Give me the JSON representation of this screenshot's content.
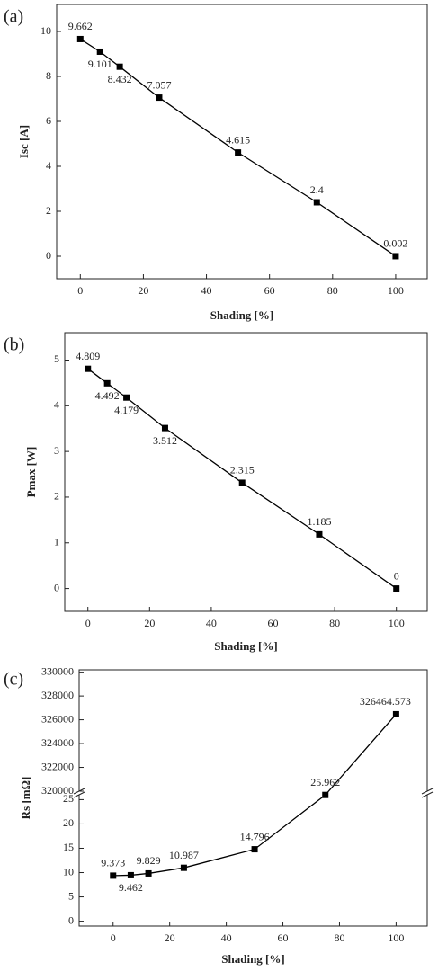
{
  "chart_data": [
    {
      "type": "line",
      "panel_label": "(a)",
      "x_label": "Shading [%]",
      "y_label": "Isc [A]",
      "color": "#000000",
      "x": [
        0,
        6.25,
        12.5,
        25,
        50,
        75,
        100
      ],
      "values": [
        9.662,
        9.101,
        8.432,
        7.057,
        4.615,
        2.4,
        0.002
      ],
      "xlim": [
        -7.5,
        110
      ],
      "xticks": [
        0,
        20,
        40,
        60,
        80,
        100
      ],
      "ylim": [
        -1,
        11.2
      ],
      "yticks": [
        0,
        2,
        4,
        6,
        8,
        10
      ]
    },
    {
      "type": "line",
      "panel_label": "(b)",
      "x_label": "Shading [%]",
      "y_label": "Pmax [W]",
      "color": "#000000",
      "x": [
        0,
        6.25,
        12.5,
        25,
        50,
        75,
        100
      ],
      "values": [
        4.809,
        4.492,
        4.179,
        3.512,
        2.315,
        1.185,
        0
      ],
      "xlim": [
        -7.5,
        110
      ],
      "xticks": [
        0,
        20,
        40,
        60,
        80,
        100
      ],
      "ylim": [
        -0.5,
        5.6
      ],
      "yticks": [
        0,
        1,
        2,
        3,
        4,
        5
      ]
    },
    {
      "type": "broken-line",
      "panel_label": "(c)",
      "x_label": "Shading [%]",
      "y_label": "Rs [mΩ]",
      "color": "#000000",
      "x": [
        0,
        6.25,
        12.5,
        25,
        50,
        75,
        100
      ],
      "values": [
        9.373,
        9.462,
        9.829,
        10.987,
        14.796,
        25.962,
        326464.573
      ],
      "xlim": [
        -12,
        111
      ],
      "xticks": [
        0,
        20,
        40,
        60,
        80,
        100
      ],
      "y_segments": [
        {
          "ylim": [
            -1,
            26
          ],
          "yticks": [
            0,
            5,
            10,
            15,
            20,
            25
          ]
        },
        {
          "ylim": [
            320000,
            330200
          ],
          "yticks": [
            320000,
            322000,
            324000,
            326000,
            328000,
            330000
          ]
        }
      ]
    }
  ]
}
